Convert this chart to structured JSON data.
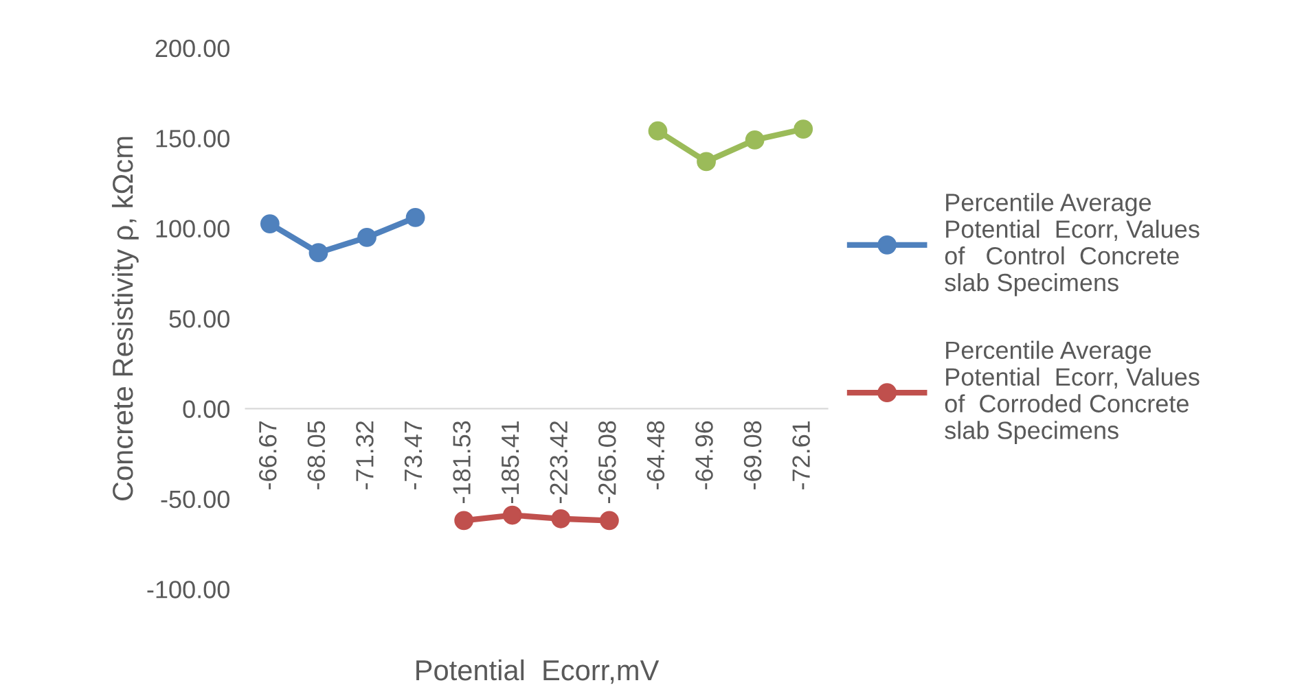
{
  "chart_data": {
    "type": "line",
    "xlabel": "Potential  Ecorr,mV",
    "ylabel": "Concrete Resistivity ρ, kΩcm",
    "categories": [
      "-66.67",
      "-68.05",
      "-71.32",
      "-73.47",
      "-181.53",
      "-185.41",
      "-223.42",
      "-265.08",
      "-64.48",
      "-64.96",
      "-69.08",
      "-72.61"
    ],
    "series": [
      {
        "name": "Percentile Average\nPotential  Ecorr, Values\nof   Control  Concrete\nslab Specimens",
        "color": "#4f81bd",
        "values": [
          102.5,
          86.5,
          95,
          106,
          null,
          null,
          null,
          null,
          null,
          null,
          null,
          null
        ]
      },
      {
        "name": "Percentile Average\nPotential  Ecorr, Values\nof  Corroded Concrete\nslab Specimens",
        "color": "#c0504d",
        "values": [
          null,
          null,
          null,
          null,
          -62,
          -59,
          -61,
          -62,
          null,
          null,
          null,
          null
        ]
      },
      {
        "color": "#9bbb59",
        "values": [
          null,
          null,
          null,
          null,
          null,
          null,
          null,
          null,
          154,
          137,
          149,
          155
        ]
      }
    ],
    "ylim": [
      -100,
      200
    ],
    "yticks": [
      {
        "value": -100,
        "label": "-100.00"
      },
      {
        "value": -50,
        "label": "-50.00"
      },
      {
        "value": 0,
        "label": "0.00"
      },
      {
        "value": 50,
        "label": "50.00"
      },
      {
        "value": 100,
        "label": "100.00"
      },
      {
        "value": 150,
        "label": "150.00"
      },
      {
        "value": 200,
        "label": "200.00"
      }
    ],
    "grid": false,
    "legend": "right",
    "marker": "circle",
    "line_style": "solid"
  }
}
